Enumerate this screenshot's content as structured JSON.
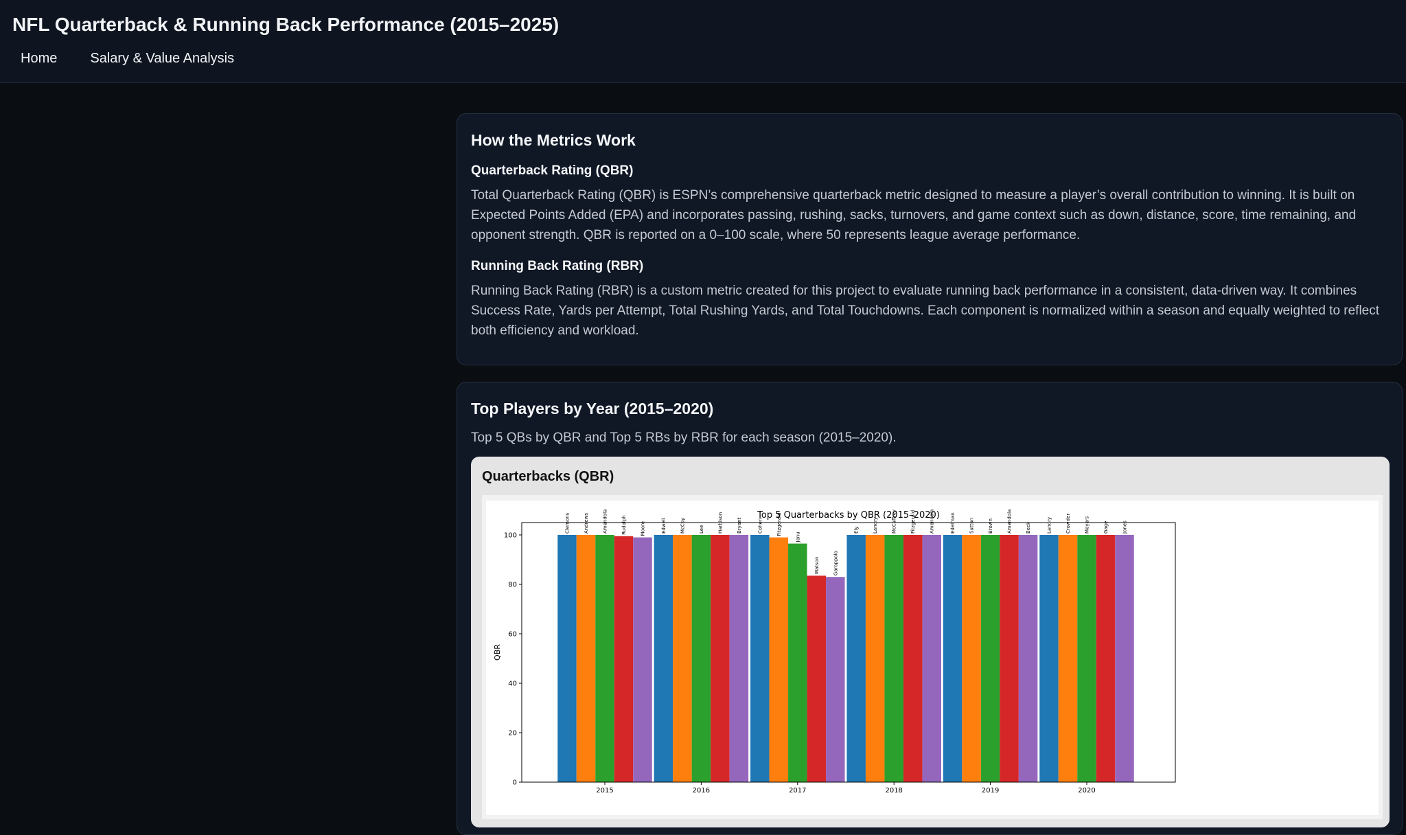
{
  "header": {
    "title": "NFL Quarterback & Running Back Performance (2015–2025)",
    "nav": [
      {
        "label": "Home"
      },
      {
        "label": "Salary & Value Analysis"
      }
    ]
  },
  "metrics": {
    "title": "How the Metrics Work",
    "qbr": {
      "heading": "Quarterback Rating (QBR)",
      "text": "Total Quarterback Rating (QBR) is ESPN’s comprehensive quarterback metric designed to measure a player’s overall contribution to winning. It is built on Expected Points Added (EPA) and incorporates passing, rushing, sacks, turnovers, and game context such as down, distance, score, time remaining, and opponent strength. QBR is reported on a 0–100 scale, where 50 represents league average performance."
    },
    "rbr": {
      "heading": "Running Back Rating (RBR)",
      "text": "Running Back Rating (RBR) is a custom metric created for this project to evaluate running back performance in a consistent, data-driven way. It combines Success Rate, Yards per Attempt, Total Rushing Yards, and Total Touchdowns. Each component is normalized within a season and equally weighted to reflect both efficiency and workload."
    }
  },
  "top_players": {
    "title": "Top Players by Year (2015–2020)",
    "subtitle": "Top 5 QBs by QBR and Top 5 RBs by RBR for each season (2015–2020).",
    "qb_section_title": "Quarterbacks (QBR)"
  },
  "chart_data": {
    "type": "bar",
    "title": "Top 5 Quarterbacks by QBR (2015–2020)",
    "xlabel": "",
    "ylabel": "QBR",
    "ylim": [
      0,
      105
    ],
    "yticks": [
      0,
      20,
      40,
      60,
      80,
      100
    ],
    "grid": false,
    "categories": [
      "2015",
      "2016",
      "2017",
      "2018",
      "2019",
      "2020"
    ],
    "series_colors": [
      "#1f77b4",
      "#ff7f0e",
      "#2ca02c",
      "#d62728",
      "#9467bd"
    ],
    "groups": [
      {
        "year": "2015",
        "bars": [
          {
            "player": "Clemons",
            "value": 100
          },
          {
            "player": "Andrews",
            "value": 100
          },
          {
            "player": "Amendola",
            "value": 100
          },
          {
            "player": "Rudolph",
            "value": 99.5
          },
          {
            "player": "Moore",
            "value": 99
          }
        ]
      },
      {
        "year": "2016",
        "bars": [
          {
            "player": "Edwell",
            "value": 100
          },
          {
            "player": "McCoy",
            "value": 100
          },
          {
            "player": "Lee",
            "value": 100
          },
          {
            "player": "Harbison",
            "value": 100
          },
          {
            "player": "Bryant",
            "value": 100
          }
        ]
      },
      {
        "year": "2017",
        "bars": [
          {
            "player": "Cohen",
            "value": 100
          },
          {
            "player": "Fitzgerald",
            "value": 99
          },
          {
            "player": "Jenu",
            "value": 96.5
          },
          {
            "player": "Watson",
            "value": 83.5
          },
          {
            "player": "Garoppolo",
            "value": 83
          }
        ]
      },
      {
        "year": "2018",
        "bars": [
          {
            "player": "Ely",
            "value": 100
          },
          {
            "player": "Landry",
            "value": 100
          },
          {
            "player": "McCaffrey",
            "value": 100
          },
          {
            "player": "Fitzgerald",
            "value": 100
          },
          {
            "player": "Amendola",
            "value": 100
          }
        ]
      },
      {
        "year": "2019",
        "bars": [
          {
            "player": "Edelman",
            "value": 100
          },
          {
            "player": "Sutton",
            "value": 100
          },
          {
            "player": "Brown",
            "value": 100
          },
          {
            "player": "Amendola",
            "value": 100
          },
          {
            "player": "Beck",
            "value": 100
          }
        ]
      },
      {
        "year": "2020",
        "bars": [
          {
            "player": "Landry",
            "value": 100
          },
          {
            "player": "Crowder",
            "value": 100
          },
          {
            "player": "Meyers",
            "value": 100
          },
          {
            "player": "Gage",
            "value": 100
          },
          {
            "player": "Jones",
            "value": 100
          }
        ]
      }
    ]
  }
}
